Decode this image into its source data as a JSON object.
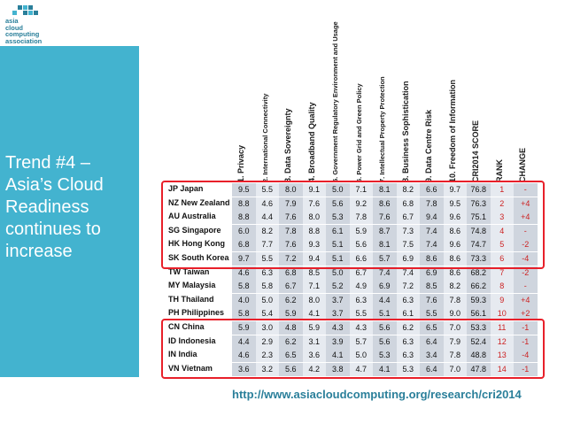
{
  "logo": {
    "lines": [
      "asia",
      "cloud",
      "computing",
      "association"
    ]
  },
  "slide": {
    "title_lines": [
      "Trend #4 –",
      "Asia’s Cloud",
      "Readiness",
      "continues to",
      "increase"
    ]
  },
  "table": {
    "headers": [
      "1. Privacy",
      "2. International Connectivity",
      "3. Data Sovereignty",
      "4. Broadband Quality",
      "5. Government Regulatory Environment and Usage",
      "6. Power Grid and Green Policy",
      "7. Intellectual Property Protection",
      "8. Business Sophistication",
      "9. Data Centre Risk",
      "10. Freedom of Information",
      "CRI2014 SCORE",
      "RANK",
      "CHANGE"
    ],
    "rows": [
      {
        "country": "JP Japan",
        "values": [
          "9.5",
          "5.5",
          "8.0",
          "9.1",
          "5.0",
          "7.1",
          "8.1",
          "8.2",
          "6.6",
          "9.7",
          "76.8",
          "1",
          "-"
        ]
      },
      {
        "country": "NZ New Zealand",
        "values": [
          "8.8",
          "4.6",
          "7.9",
          "7.6",
          "5.6",
          "9.2",
          "8.6",
          "6.8",
          "7.8",
          "9.5",
          "76.3",
          "2",
          "+4"
        ]
      },
      {
        "country": "AU Australia",
        "values": [
          "8.8",
          "4.4",
          "7.6",
          "8.0",
          "5.3",
          "7.8",
          "7.6",
          "6.7",
          "9.4",
          "9.6",
          "75.1",
          "3",
          "+4"
        ]
      },
      {
        "country": "SG Singapore",
        "values": [
          "6.0",
          "8.2",
          "7.8",
          "8.8",
          "6.1",
          "5.9",
          "8.7",
          "7.3",
          "7.4",
          "8.6",
          "74.8",
          "4",
          "-"
        ]
      },
      {
        "country": "HK Hong Kong",
        "values": [
          "6.8",
          "7.7",
          "7.6",
          "9.3",
          "5.1",
          "5.6",
          "8.1",
          "7.5",
          "7.4",
          "9.6",
          "74.7",
          "5",
          "-2"
        ]
      },
      {
        "country": "SK South Korea",
        "values": [
          "9.7",
          "5.5",
          "7.2",
          "9.4",
          "5.1",
          "6.6",
          "5.7",
          "6.9",
          "8.6",
          "8.6",
          "73.3",
          "6",
          "-4"
        ]
      },
      {
        "country": "TW Taiwan",
        "values": [
          "4.6",
          "6.3",
          "6.8",
          "8.5",
          "5.0",
          "6.7",
          "7.4",
          "7.4",
          "6.9",
          "8.6",
          "68.2",
          "7",
          "-2"
        ]
      },
      {
        "country": "MY Malaysia",
        "values": [
          "5.8",
          "5.8",
          "6.7",
          "7.1",
          "5.2",
          "4.9",
          "6.9",
          "7.2",
          "8.5",
          "8.2",
          "66.2",
          "8",
          "-"
        ]
      },
      {
        "country": "TH Thailand",
        "values": [
          "4.0",
          "5.0",
          "6.2",
          "8.0",
          "3.7",
          "6.3",
          "4.4",
          "6.3",
          "7.6",
          "7.8",
          "59.3",
          "9",
          "+4"
        ]
      },
      {
        "country": "PH Philippines",
        "values": [
          "5.8",
          "5.4",
          "5.9",
          "4.1",
          "3.7",
          "5.5",
          "5.1",
          "6.1",
          "5.5",
          "9.0",
          "56.1",
          "10",
          "+2"
        ]
      },
      {
        "country": "CN China",
        "values": [
          "5.9",
          "3.0",
          "4.8",
          "5.9",
          "4.3",
          "4.3",
          "5.6",
          "6.2",
          "6.5",
          "7.0",
          "53.3",
          "11",
          "-1"
        ]
      },
      {
        "country": "ID Indonesia",
        "values": [
          "4.4",
          "2.9",
          "6.2",
          "3.1",
          "3.9",
          "5.7",
          "5.6",
          "6.3",
          "6.4",
          "7.9",
          "52.4",
          "12",
          "-1"
        ]
      },
      {
        "country": "IN India",
        "values": [
          "4.6",
          "2.3",
          "6.5",
          "3.6",
          "4.1",
          "5.0",
          "5.3",
          "6.3",
          "3.4",
          "7.8",
          "48.8",
          "13",
          "-4"
        ]
      },
      {
        "country": "VN Vietnam",
        "values": [
          "3.6",
          "3.2",
          "5.6",
          "4.2",
          "3.8",
          "4.7",
          "4.1",
          "5.3",
          "6.4",
          "7.0",
          "47.8",
          "14",
          "-1"
        ]
      }
    ]
  },
  "footer": {
    "url": "http://www.asiacloudcomputing.org/research/cri2014"
  },
  "colors": {
    "sidebar": "#43b3cf",
    "highlight": "#e8202a",
    "url": "#2a7f9a",
    "shade_a": "#cfd5de",
    "shade_b": "#e6eaf0"
  }
}
